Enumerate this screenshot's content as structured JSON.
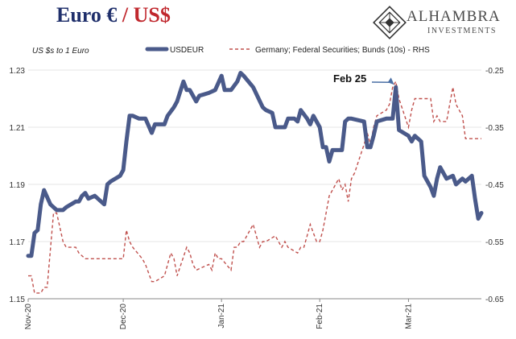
{
  "title": {
    "part1": "Euro €",
    "sep": "/",
    "part2": "US$"
  },
  "brand": {
    "name": "ALHAMBRA",
    "sub": "INVESTMENTS"
  },
  "colors": {
    "usdeur": "#4a5a8a",
    "bund": "#c0504d",
    "title_blue": "#1f2f6b",
    "title_red": "#c0272d"
  },
  "chart_data": {
    "type": "line",
    "note": "US $s to 1 Euro",
    "annotation": {
      "text": "Feb 25",
      "date": "2021-02-25"
    },
    "x_tick_labels": [
      "Nov-20",
      "Dec-20",
      "Jan-21",
      "Feb-21",
      "Mar-21"
    ],
    "x_tick_dates": [
      "2020-11-01",
      "2020-12-01",
      "2021-01-01",
      "2021-02-01",
      "2021-03-01"
    ],
    "x_range": [
      "2020-11-01",
      "2021-03-24"
    ],
    "y_left": {
      "range": [
        1.15,
        1.23
      ],
      "ticks": [
        "1.15",
        "1.17",
        "1.19",
        "1.21",
        "1.23"
      ]
    },
    "y_right": {
      "range": [
        -0.65,
        -0.25
      ],
      "ticks": [
        "-0.25",
        "-0.35",
        "-0.45",
        "-0.55",
        "-0.65"
      ]
    },
    "legend_position": "top",
    "series": [
      {
        "name": "USDEUR",
        "axis": "left",
        "style": "solid",
        "points": [
          [
            "2020-11-01",
            1.165
          ],
          [
            "2020-11-02",
            1.165
          ],
          [
            "2020-11-03",
            1.173
          ],
          [
            "2020-11-04",
            1.174
          ],
          [
            "2020-11-05",
            1.183
          ],
          [
            "2020-11-06",
            1.188
          ],
          [
            "2020-11-08",
            1.183
          ],
          [
            "2020-11-10",
            1.181
          ],
          [
            "2020-11-12",
            1.181
          ],
          [
            "2020-11-13",
            1.182
          ],
          [
            "2020-11-16",
            1.184
          ],
          [
            "2020-11-17",
            1.184
          ],
          [
            "2020-11-18",
            1.186
          ],
          [
            "2020-11-19",
            1.187
          ],
          [
            "2020-11-20",
            1.185
          ],
          [
            "2020-11-22",
            1.186
          ],
          [
            "2020-11-24",
            1.184
          ],
          [
            "2020-11-25",
            1.183
          ],
          [
            "2020-11-26",
            1.19
          ],
          [
            "2020-11-27",
            1.191
          ],
          [
            "2020-11-30",
            1.193
          ],
          [
            "2020-12-01",
            1.195
          ],
          [
            "2020-12-02",
            1.205
          ],
          [
            "2020-12-03",
            1.214
          ],
          [
            "2020-12-04",
            1.214
          ],
          [
            "2020-12-06",
            1.213
          ],
          [
            "2020-12-08",
            1.213
          ],
          [
            "2020-12-10",
            1.208
          ],
          [
            "2020-12-11",
            1.211
          ],
          [
            "2020-12-14",
            1.211
          ],
          [
            "2020-12-15",
            1.214
          ],
          [
            "2020-12-17",
            1.217
          ],
          [
            "2020-12-18",
            1.219
          ],
          [
            "2020-12-20",
            1.226
          ],
          [
            "2020-12-21",
            1.223
          ],
          [
            "2020-12-22",
            1.223
          ],
          [
            "2020-12-24",
            1.219
          ],
          [
            "2020-12-25",
            1.221
          ],
          [
            "2020-12-28",
            1.222
          ],
          [
            "2020-12-30",
            1.223
          ],
          [
            "2021-01-01",
            1.228
          ],
          [
            "2021-01-02",
            1.223
          ],
          [
            "2021-01-04",
            1.223
          ],
          [
            "2021-01-06",
            1.226
          ],
          [
            "2021-01-07",
            1.229
          ],
          [
            "2021-01-08",
            1.228
          ],
          [
            "2021-01-11",
            1.224
          ],
          [
            "2021-01-14",
            1.217
          ],
          [
            "2021-01-15",
            1.216
          ],
          [
            "2021-01-17",
            1.215
          ],
          [
            "2021-01-18",
            1.21
          ],
          [
            "2021-01-21",
            1.21
          ],
          [
            "2021-01-22",
            1.213
          ],
          [
            "2021-01-24",
            1.213
          ],
          [
            "2021-01-25",
            1.212
          ],
          [
            "2021-01-26",
            1.216
          ],
          [
            "2021-01-28",
            1.213
          ],
          [
            "2021-01-29",
            1.211
          ],
          [
            "2021-01-30",
            1.214
          ],
          [
            "2021-02-01",
            1.21
          ],
          [
            "2021-02-02",
            1.203
          ],
          [
            "2021-02-03",
            1.203
          ],
          [
            "2021-02-04",
            1.198
          ],
          [
            "2021-02-05",
            1.202
          ],
          [
            "2021-02-08",
            1.202
          ],
          [
            "2021-02-09",
            1.212
          ],
          [
            "2021-02-10",
            1.213
          ],
          [
            "2021-02-11",
            1.213
          ],
          [
            "2021-02-15",
            1.212
          ],
          [
            "2021-02-16",
            1.203
          ],
          [
            "2021-02-17",
            1.203
          ],
          [
            "2021-02-18",
            1.207
          ],
          [
            "2021-02-19",
            1.212
          ],
          [
            "2021-02-22",
            1.213
          ],
          [
            "2021-02-23",
            1.213
          ],
          [
            "2021-02-24",
            1.213
          ],
          [
            "2021-02-25",
            1.224
          ],
          [
            "2021-02-26",
            1.209
          ],
          [
            "2021-03-01",
            1.207
          ],
          [
            "2021-03-02",
            1.205
          ],
          [
            "2021-03-03",
            1.207
          ],
          [
            "2021-03-05",
            1.205
          ],
          [
            "2021-03-06",
            1.193
          ],
          [
            "2021-03-08",
            1.189
          ],
          [
            "2021-03-09",
            1.186
          ],
          [
            "2021-03-10",
            1.192
          ],
          [
            "2021-03-11",
            1.196
          ],
          [
            "2021-03-12",
            1.194
          ],
          [
            "2021-03-13",
            1.192
          ],
          [
            "2021-03-15",
            1.193
          ],
          [
            "2021-03-16",
            1.19
          ],
          [
            "2021-03-17",
            1.191
          ],
          [
            "2021-03-18",
            1.192
          ],
          [
            "2021-03-19",
            1.191
          ],
          [
            "2021-03-21",
            1.193
          ],
          [
            "2021-03-22",
            1.185
          ],
          [
            "2021-03-23",
            1.178
          ],
          [
            "2021-03-24",
            1.18
          ]
        ]
      },
      {
        "name": "Germany; Federal Securities; Bunds (10s) - RHS",
        "axis": "right",
        "style": "dashed",
        "points": [
          [
            "2020-11-01",
            -0.61
          ],
          [
            "2020-11-02",
            -0.61
          ],
          [
            "2020-11-03",
            -0.64
          ],
          [
            "2020-11-05",
            -0.64
          ],
          [
            "2020-11-06",
            -0.63
          ],
          [
            "2020-11-07",
            -0.63
          ],
          [
            "2020-11-09",
            -0.5
          ],
          [
            "2020-11-10",
            -0.5
          ],
          [
            "2020-11-12",
            -0.55
          ],
          [
            "2020-11-13",
            -0.56
          ],
          [
            "2020-11-16",
            -0.56
          ],
          [
            "2020-11-17",
            -0.57
          ],
          [
            "2020-11-19",
            -0.58
          ],
          [
            "2020-11-22",
            -0.58
          ],
          [
            "2020-11-24",
            -0.58
          ],
          [
            "2020-11-27",
            -0.58
          ],
          [
            "2020-12-01",
            -0.58
          ],
          [
            "2020-12-02",
            -0.53
          ],
          [
            "2020-12-03",
            -0.55
          ],
          [
            "2020-12-04",
            -0.56
          ],
          [
            "2020-12-07",
            -0.58
          ],
          [
            "2020-12-08",
            -0.59
          ],
          [
            "2020-12-10",
            -0.62
          ],
          [
            "2020-12-11",
            -0.62
          ],
          [
            "2020-12-14",
            -0.61
          ],
          [
            "2020-12-15",
            -0.59
          ],
          [
            "2020-12-16",
            -0.57
          ],
          [
            "2020-12-17",
            -0.58
          ],
          [
            "2020-12-18",
            -0.61
          ],
          [
            "2020-12-21",
            -0.56
          ],
          [
            "2020-12-22",
            -0.57
          ],
          [
            "2020-12-23",
            -0.59
          ],
          [
            "2020-12-24",
            -0.6
          ],
          [
            "2020-12-28",
            -0.59
          ],
          [
            "2020-12-29",
            -0.6
          ],
          [
            "2020-12-30",
            -0.57
          ],
          [
            "2020-12-31",
            -0.58
          ],
          [
            "2021-01-01",
            -0.58
          ],
          [
            "2021-01-04",
            -0.6
          ],
          [
            "2021-01-05",
            -0.56
          ],
          [
            "2021-01-06",
            -0.56
          ],
          [
            "2021-01-07",
            -0.55
          ],
          [
            "2021-01-08",
            -0.55
          ],
          [
            "2021-01-11",
            -0.52
          ],
          [
            "2021-01-13",
            -0.56
          ],
          [
            "2021-01-14",
            -0.55
          ],
          [
            "2021-01-15",
            -0.55
          ],
          [
            "2021-01-18",
            -0.54
          ],
          [
            "2021-01-19",
            -0.55
          ],
          [
            "2021-01-20",
            -0.56
          ],
          [
            "2021-01-21",
            -0.55
          ],
          [
            "2021-01-22",
            -0.56
          ],
          [
            "2021-01-25",
            -0.57
          ],
          [
            "2021-01-26",
            -0.56
          ],
          [
            "2021-01-27",
            -0.56
          ],
          [
            "2021-01-28",
            -0.54
          ],
          [
            "2021-01-29",
            -0.52
          ],
          [
            "2021-01-31",
            -0.55
          ],
          [
            "2021-02-01",
            -0.55
          ],
          [
            "2021-02-02",
            -0.53
          ],
          [
            "2021-02-03",
            -0.5
          ],
          [
            "2021-02-04",
            -0.47
          ],
          [
            "2021-02-05",
            -0.46
          ],
          [
            "2021-02-07",
            -0.44
          ],
          [
            "2021-02-08",
            -0.46
          ],
          [
            "2021-02-09",
            -0.45
          ],
          [
            "2021-02-10",
            -0.48
          ],
          [
            "2021-02-11",
            -0.44
          ],
          [
            "2021-02-12",
            -0.43
          ],
          [
            "2021-02-15",
            -0.38
          ],
          [
            "2021-02-16",
            -0.36
          ],
          [
            "2021-02-17",
            -0.38
          ],
          [
            "2021-02-18",
            -0.35
          ],
          [
            "2021-02-19",
            -0.33
          ],
          [
            "2021-02-22",
            -0.32
          ],
          [
            "2021-02-23",
            -0.31
          ],
          [
            "2021-02-24",
            -0.28
          ],
          [
            "2021-02-25",
            -0.27
          ],
          [
            "2021-02-26",
            -0.3
          ],
          [
            "2021-03-01",
            -0.35
          ],
          [
            "2021-03-02",
            -0.32
          ],
          [
            "2021-03-03",
            -0.3
          ],
          [
            "2021-03-04",
            -0.3
          ],
          [
            "2021-03-05",
            -0.3
          ],
          [
            "2021-03-08",
            -0.3
          ],
          [
            "2021-03-09",
            -0.34
          ],
          [
            "2021-03-10",
            -0.33
          ],
          [
            "2021-03-11",
            -0.34
          ],
          [
            "2021-03-12",
            -0.34
          ],
          [
            "2021-03-13",
            -0.34
          ],
          [
            "2021-03-15",
            -0.28
          ],
          [
            "2021-03-16",
            -0.31
          ],
          [
            "2021-03-17",
            -0.32
          ],
          [
            "2021-03-18",
            -0.33
          ],
          [
            "2021-03-19",
            -0.37
          ],
          [
            "2021-03-22",
            -0.37
          ],
          [
            "2021-03-24",
            -0.37
          ]
        ]
      }
    ]
  }
}
